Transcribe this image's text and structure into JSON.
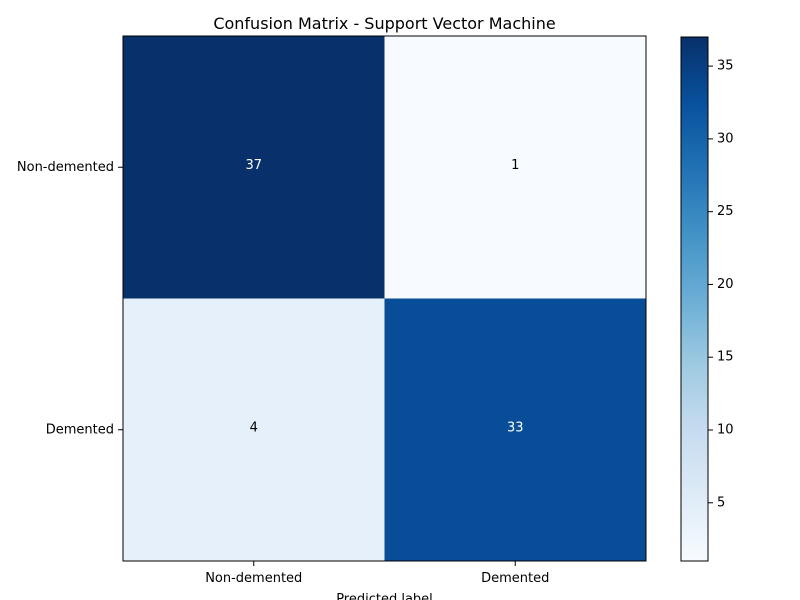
{
  "chart_data": {
    "type": "heatmap",
    "title": "Confusion Matrix - Support Vector Machine",
    "xlabel": "Predicted label",
    "ylabel": "",
    "x_categories": [
      "Non-demented",
      "Demented"
    ],
    "y_categories": [
      "Non-demented",
      "Demented"
    ],
    "values": [
      [
        37,
        1
      ],
      [
        4,
        33
      ]
    ],
    "colorbar": {
      "colormap": "Blues",
      "range": [
        1,
        37
      ],
      "ticks": [
        5,
        10,
        15,
        20,
        25,
        30,
        35
      ]
    },
    "grid": false
  }
}
